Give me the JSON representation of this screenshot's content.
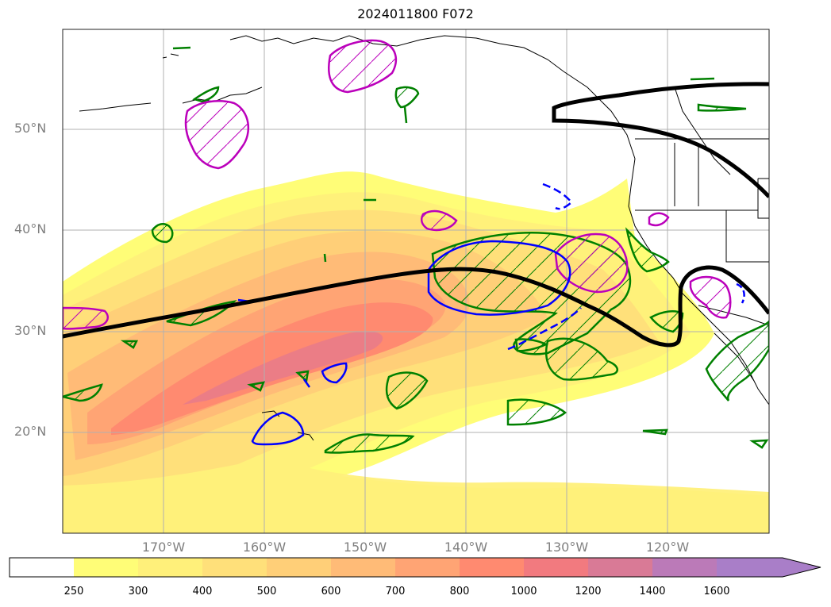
{
  "title": "2024011800 F072",
  "lat_labels": [
    "50°N",
    "40°N",
    "30°N",
    "20°N"
  ],
  "lon_labels": [
    "170°W",
    "160°W",
    "150°W",
    "140°W",
    "130°W",
    "120°W"
  ],
  "colorbar": {
    "labels": [
      "250",
      "300",
      "400",
      "500",
      "600",
      "700",
      "800",
      "1000",
      "1200",
      "1400",
      "1600"
    ],
    "colors": [
      "#ffffff",
      "#fffd77",
      "#fff07a",
      "#ffe07a",
      "#ffcf78",
      "#ffbb77",
      "#ffa474",
      "#ff8a70",
      "#f27a7f",
      "#d97a96",
      "#bb7ab8",
      "#a97ec8"
    ]
  },
  "colors": {
    "jet_line": "#000000",
    "green_contour": "#008000",
    "magenta_contour": "#bb00bb",
    "blue_contour": "#0000ff",
    "grid": "#b0b0b0",
    "label_gray": "#808080"
  }
}
